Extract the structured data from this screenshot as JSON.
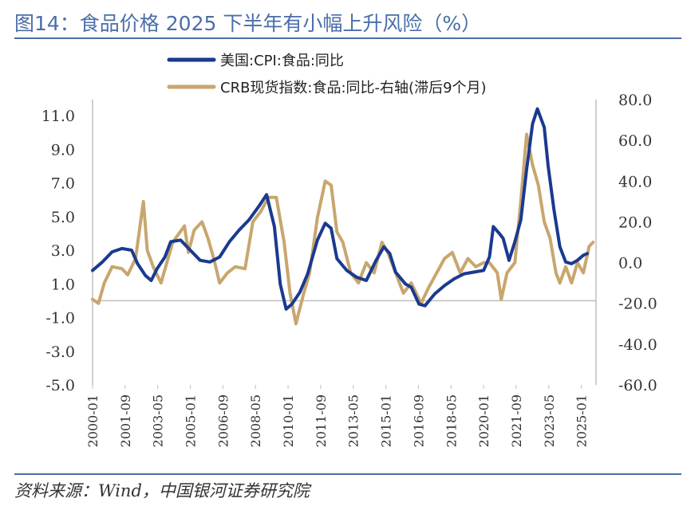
{
  "title": "图14：食品价格 2025 下半年有小幅上升风险（%）",
  "source": "资料来源：Wind，中国银河证券研究院",
  "colors": {
    "title": "#4a6ea9",
    "cpi": "#1a3a8f",
    "crb": "#c8a66e",
    "axis": "#bfbfbf"
  },
  "chart_data": {
    "type": "line",
    "legend_position": "top",
    "grid": false,
    "y_left": {
      "min": -5,
      "max": 11,
      "ticks": [
        "11.0",
        "9.0",
        "7.0",
        "5.0",
        "3.0",
        "1.0",
        "-1.0",
        "-3.0",
        "-5.0"
      ]
    },
    "y_right": {
      "min": -60,
      "max": 80,
      "ticks": [
        "80.0",
        "60.0",
        "40.0",
        "20.0",
        "0.0",
        "-20.0",
        "-40.0",
        "-60.0"
      ]
    },
    "x_ticks": [
      "2000-01",
      "2001-09",
      "2003-05",
      "2005-01",
      "2006-09",
      "2008-05",
      "2010-01",
      "2011-09",
      "2013-05",
      "2015-01",
      "2016-09",
      "2018-05",
      "2020-01",
      "2021-09",
      "2023-05",
      "2025-01"
    ],
    "series": [
      {
        "name": "美国:CPI:食品:同比",
        "axis": "left",
        "points": [
          [
            2000.0,
            1.8
          ],
          [
            2000.5,
            2.3
          ],
          [
            2001.0,
            2.9
          ],
          [
            2001.5,
            3.1
          ],
          [
            2002.0,
            3.0
          ],
          [
            2002.3,
            2.2
          ],
          [
            2002.7,
            1.5
          ],
          [
            2003.0,
            1.2
          ],
          [
            2003.3,
            1.9
          ],
          [
            2003.7,
            2.6
          ],
          [
            2004.0,
            3.5
          ],
          [
            2004.5,
            3.6
          ],
          [
            2005.0,
            3.0
          ],
          [
            2005.5,
            2.4
          ],
          [
            2006.0,
            2.3
          ],
          [
            2006.5,
            2.6
          ],
          [
            2007.0,
            3.5
          ],
          [
            2007.5,
            4.2
          ],
          [
            2008.0,
            4.8
          ],
          [
            2008.5,
            5.6
          ],
          [
            2008.9,
            6.3
          ],
          [
            2009.3,
            4.4
          ],
          [
            2009.6,
            1.0
          ],
          [
            2009.9,
            -0.5
          ],
          [
            2010.2,
            -0.2
          ],
          [
            2010.6,
            0.5
          ],
          [
            2011.0,
            1.6
          ],
          [
            2011.5,
            3.6
          ],
          [
            2011.9,
            4.6
          ],
          [
            2012.2,
            4.3
          ],
          [
            2012.5,
            2.5
          ],
          [
            2013.0,
            1.8
          ],
          [
            2013.5,
            1.4
          ],
          [
            2014.0,
            1.2
          ],
          [
            2014.5,
            2.4
          ],
          [
            2014.9,
            3.2
          ],
          [
            2015.2,
            2.8
          ],
          [
            2015.5,
            1.7
          ],
          [
            2016.0,
            1.0
          ],
          [
            2016.3,
            0.8
          ],
          [
            2016.7,
            -0.2
          ],
          [
            2017.0,
            -0.3
          ],
          [
            2017.5,
            0.4
          ],
          [
            2018.0,
            0.9
          ],
          [
            2018.5,
            1.3
          ],
          [
            2019.0,
            1.6
          ],
          [
            2019.5,
            1.7
          ],
          [
            2020.0,
            1.8
          ],
          [
            2020.3,
            2.6
          ],
          [
            2020.5,
            4.4
          ],
          [
            2020.8,
            4.0
          ],
          [
            2021.0,
            3.7
          ],
          [
            2021.3,
            2.4
          ],
          [
            2021.6,
            3.5
          ],
          [
            2021.9,
            4.8
          ],
          [
            2022.2,
            7.8
          ],
          [
            2022.5,
            10.5
          ],
          [
            2022.75,
            11.4
          ],
          [
            2023.1,
            10.3
          ],
          [
            2023.3,
            8.0
          ],
          [
            2023.6,
            5.4
          ],
          [
            2023.9,
            3.2
          ],
          [
            2024.2,
            2.3
          ],
          [
            2024.5,
            2.2
          ],
          [
            2024.8,
            2.4
          ],
          [
            2025.1,
            2.7
          ],
          [
            2025.3,
            2.8
          ]
        ]
      },
      {
        "name": "CRB现货指数:食品:同比-右轴(滞后9个月)",
        "axis": "right",
        "points": [
          [
            2000.0,
            -18
          ],
          [
            2000.3,
            -20
          ],
          [
            2000.6,
            -10
          ],
          [
            2001.0,
            -2
          ],
          [
            2001.5,
            -3
          ],
          [
            2001.8,
            -6
          ],
          [
            2002.2,
            2
          ],
          [
            2002.6,
            30
          ],
          [
            2002.8,
            6
          ],
          [
            2003.1,
            -2
          ],
          [
            2003.5,
            -10
          ],
          [
            2003.8,
            0
          ],
          [
            2004.1,
            10
          ],
          [
            2004.4,
            14
          ],
          [
            2004.7,
            18
          ],
          [
            2004.9,
            5
          ],
          [
            2005.2,
            16
          ],
          [
            2005.6,
            20
          ],
          [
            2005.9,
            12
          ],
          [
            2006.2,
            2
          ],
          [
            2006.5,
            -10
          ],
          [
            2006.9,
            -5
          ],
          [
            2007.3,
            -2
          ],
          [
            2007.8,
            -3
          ],
          [
            2008.2,
            20
          ],
          [
            2008.6,
            25
          ],
          [
            2009.0,
            32
          ],
          [
            2009.4,
            32
          ],
          [
            2009.8,
            10
          ],
          [
            2010.1,
            -15
          ],
          [
            2010.4,
            -30
          ],
          [
            2010.8,
            -15
          ],
          [
            2011.1,
            -5
          ],
          [
            2011.5,
            22
          ],
          [
            2011.9,
            40
          ],
          [
            2012.2,
            38
          ],
          [
            2012.5,
            15
          ],
          [
            2012.8,
            10
          ],
          [
            2013.2,
            -5
          ],
          [
            2013.6,
            -10
          ],
          [
            2014.0,
            0
          ],
          [
            2014.4,
            -5
          ],
          [
            2014.8,
            10
          ],
          [
            2015.1,
            5
          ],
          [
            2015.5,
            -5
          ],
          [
            2015.9,
            -15
          ],
          [
            2016.3,
            -10
          ],
          [
            2016.8,
            -20
          ],
          [
            2017.2,
            -12
          ],
          [
            2017.6,
            -5
          ],
          [
            2018.0,
            2
          ],
          [
            2018.4,
            5
          ],
          [
            2018.8,
            -5
          ],
          [
            2019.2,
            2
          ],
          [
            2019.6,
            -2
          ],
          [
            2020.0,
            0
          ],
          [
            2020.3,
            0
          ],
          [
            2020.7,
            -5
          ],
          [
            2020.9,
            -18
          ],
          [
            2021.2,
            -5
          ],
          [
            2021.6,
            0
          ],
          [
            2021.9,
            30
          ],
          [
            2022.2,
            63
          ],
          [
            2022.5,
            48
          ],
          [
            2022.8,
            38
          ],
          [
            2023.1,
            20
          ],
          [
            2023.4,
            12
          ],
          [
            2023.7,
            -5
          ],
          [
            2023.9,
            -10
          ],
          [
            2024.2,
            -2
          ],
          [
            2024.5,
            -10
          ],
          [
            2024.8,
            0
          ],
          [
            2025.1,
            -5
          ],
          [
            2025.4,
            8
          ],
          [
            2025.6,
            10
          ]
        ]
      }
    ]
  }
}
